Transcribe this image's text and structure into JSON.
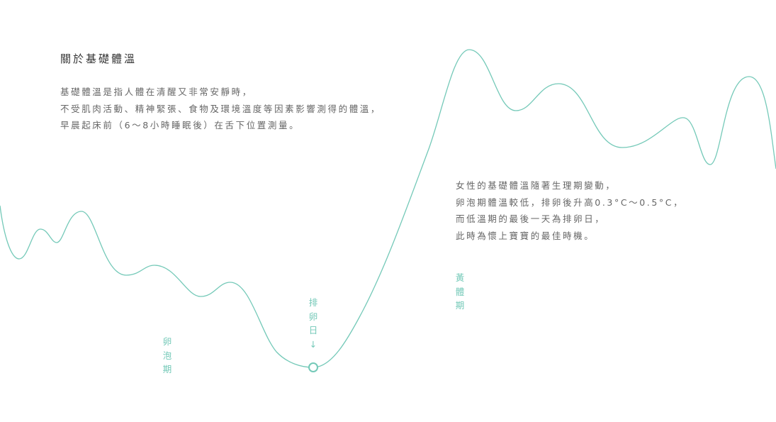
{
  "title": "關於基礎體溫",
  "intro": {
    "lines": [
      "基礎體溫是指人體在清醒又非常安靜時，",
      "不受肌肉活動、精神緊張、食物及環境溫度等因素影響測得的體溫，",
      "早晨起床前（6～8小時睡眠後）在舌下位置測量。"
    ]
  },
  "note": {
    "lines": [
      "女性的基礎體溫隨著生理期變動，",
      "卵泡期體溫較低，排卵後升高0.3°C～0.5°C，",
      "而低溫期的最後一天為排卵日，",
      "此時為懷上寶寶的最佳時機。"
    ]
  },
  "phases": {
    "follicular": [
      "卵",
      "泡",
      "期"
    ],
    "ovulation": [
      "排",
      "卵",
      "日",
      "↓"
    ],
    "luteal": [
      "黃",
      "體",
      "期"
    ]
  },
  "colors": {
    "accent": "#74c9b8",
    "text": "#666666",
    "title": "#333333"
  }
}
